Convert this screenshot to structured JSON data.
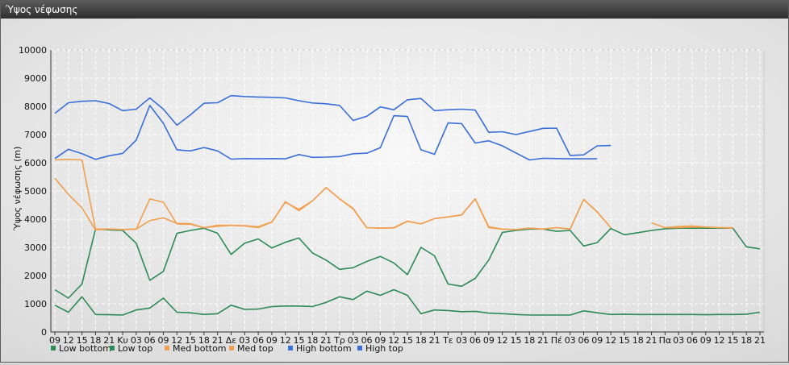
{
  "window": {
    "title": "Ύψος νέφωσης"
  },
  "chart_data": {
    "type": "line",
    "title": "",
    "ylabel": "Ύψος νέφωσης (m)",
    "xlabel": "",
    "ylim": [
      0,
      10000
    ],
    "yticks": [
      0,
      1000,
      2000,
      3000,
      4000,
      5000,
      6000,
      7000,
      8000,
      9000,
      10000
    ],
    "x": [
      "09",
      "12",
      "15",
      "18",
      "21",
      "Κυ",
      "03",
      "06",
      "09",
      "12",
      "15",
      "18",
      "21",
      "Δε",
      "03",
      "06",
      "09",
      "12",
      "15",
      "18",
      "21",
      "Τρ",
      "03",
      "06",
      "09",
      "12",
      "15",
      "18",
      "21",
      "Τε",
      "03",
      "06",
      "09",
      "12",
      "15",
      "18",
      "21",
      "Πέ",
      "03",
      "06",
      "09",
      "12",
      "15",
      "18",
      "21",
      "Πα",
      "03",
      "06",
      "09",
      "12",
      "15",
      "18",
      "21"
    ],
    "grid": true,
    "legend_position": "bottom-left",
    "series": [
      {
        "name": "Low bottom",
        "color": "#2e8a57",
        "values": [
          950,
          700,
          1250,
          620,
          610,
          600,
          780,
          850,
          1200,
          700,
          680,
          620,
          650,
          950,
          800,
          810,
          900,
          920,
          920,
          900,
          1050,
          1250,
          1150,
          1450,
          1300,
          1500,
          1300,
          650,
          780,
          760,
          720,
          730,
          670,
          650,
          620,
          600,
          600,
          600,
          600,
          750,
          680,
          620,
          630,
          620,
          620,
          620,
          620,
          620,
          610,
          620,
          620,
          630,
          700
        ]
      },
      {
        "name": "Low top",
        "color": "#2e8a57",
        "values": [
          1500,
          1200,
          1700,
          3650,
          3620,
          3600,
          3150,
          1830,
          2150,
          3500,
          3600,
          3680,
          3500,
          2750,
          3150,
          3300,
          2980,
          3180,
          3330,
          2800,
          2550,
          2220,
          2280,
          2500,
          2680,
          2450,
          2030,
          3000,
          2700,
          1700,
          1620,
          1900,
          2550,
          3530,
          3600,
          3650,
          3650,
          3570,
          3600,
          3050,
          3170,
          3670,
          3450,
          3520,
          3600,
          3660,
          3680,
          3680,
          3680,
          3680,
          3680,
          3020,
          2950
        ]
      },
      {
        "name": "Med bottom",
        "color": "#f0a050",
        "values": [
          6100,
          6120,
          6100,
          3650,
          3650,
          3630,
          3650,
          4720,
          4600,
          3830,
          3820,
          3700,
          3750,
          3780,
          3760,
          3700,
          3890,
          4620,
          4300,
          4650,
          5120,
          4720,
          4360,
          3700,
          3680,
          3690,
          3920,
          3830,
          4020,
          4080,
          4150,
          4720,
          3700,
          3640,
          3630,
          3680,
          3650,
          3700,
          3650,
          4700,
          4260,
          3700,
          null,
          null,
          3870,
          3700,
          3700,
          3720,
          3720,
          3700,
          3680,
          null,
          null
        ]
      },
      {
        "name": "Med top",
        "color": "#f0a050",
        "values": [
          5450,
          4880,
          4400,
          3620,
          3650,
          3630,
          3650,
          3950,
          4050,
          3850,
          3840,
          3700,
          3780,
          3780,
          3770,
          3730,
          3900,
          4600,
          4350,
          4650,
          5120,
          4720,
          4380,
          3700,
          3680,
          3700,
          3930,
          3830,
          4020,
          4080,
          4150,
          4720,
          3730,
          3650,
          3630,
          3680,
          3650,
          3700,
          3650,
          4700,
          4250,
          3700,
          null,
          null,
          null,
          3700,
          3740,
          3760,
          3720,
          3700,
          3700,
          null,
          null
        ]
      },
      {
        "name": "High bottom",
        "color": "#3a6ed8",
        "values": [
          6150,
          6480,
          6320,
          6120,
          6250,
          6330,
          6800,
          8030,
          7400,
          6460,
          6420,
          6540,
          6420,
          6130,
          6150,
          6140,
          6150,
          6140,
          6290,
          6190,
          6200,
          6220,
          6320,
          6340,
          6530,
          7670,
          7640,
          6460,
          6300,
          7410,
          7390,
          6700,
          6780,
          6600,
          6350,
          6100,
          6160,
          6150,
          6140,
          6140,
          6140,
          null,
          null,
          null,
          null,
          null,
          null,
          null,
          null,
          null,
          null,
          null,
          null
        ]
      },
      {
        "name": "High top",
        "color": "#3a6ed8",
        "values": [
          7750,
          8130,
          8180,
          8200,
          8100,
          7850,
          7900,
          8300,
          7900,
          7330,
          7700,
          8110,
          8130,
          8380,
          8350,
          8330,
          8320,
          8300,
          8200,
          8120,
          8090,
          8030,
          7500,
          7650,
          7980,
          7880,
          8230,
          8280,
          7850,
          7880,
          7900,
          7870,
          7080,
          7100,
          7000,
          7110,
          7220,
          7230,
          6260,
          6280,
          6600,
          6610,
          null,
          null,
          null,
          null,
          null,
          null,
          null,
          null,
          null,
          null,
          null
        ]
      }
    ]
  }
}
